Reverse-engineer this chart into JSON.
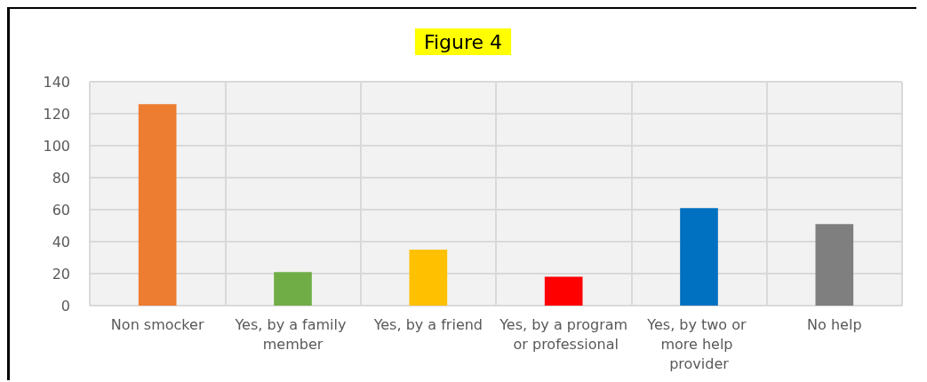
{
  "chart_data": {
    "type": "bar",
    "title": "Figure 4",
    "categories": [
      "Non smocker",
      "Yes, by a family member",
      "Yes, by a friend",
      "Yes, by a program or professional",
      "Yes, by two or more help provider",
      "No help"
    ],
    "values": [
      126,
      21,
      35,
      18,
      61,
      51
    ],
    "colors": [
      "#ed7d31",
      "#70ad47",
      "#ffc000",
      "#ff0000",
      "#0070c0",
      "#7f7f7f"
    ],
    "ylim": [
      0,
      140
    ],
    "yticks": [
      0,
      20,
      40,
      60,
      80,
      100,
      120,
      140
    ],
    "grid": true
  }
}
